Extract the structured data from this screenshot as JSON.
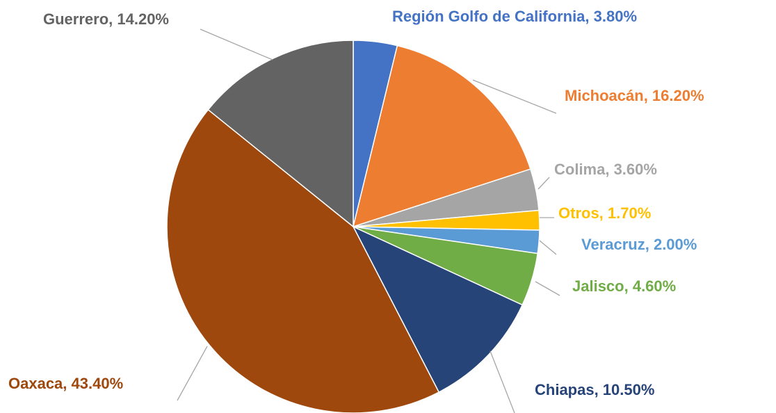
{
  "chart_data": {
    "type": "pie",
    "categories": [
      "Región Golfo de California",
      "Michoacán",
      "Colima",
      "Otros",
      "Veracruz",
      "Jalisco",
      "Chiapas",
      "Oaxaca",
      "Guerrero"
    ],
    "values": [
      3.8,
      16.2,
      3.6,
      1.7,
      2.0,
      4.6,
      10.5,
      43.4,
      14.2
    ],
    "value_labels": [
      "Región Golfo de California, 3.80%",
      "Michoacán, 16.20%",
      "Colima, 3.60%",
      "Otros, 1.70%",
      "Veracruz, 2.00%",
      "Jalisco, 4.60%",
      "Chiapas, 10.50%",
      "Oaxaca, 43.40%",
      "Guerrero, 14.20%"
    ],
    "colors": [
      "#4472c4",
      "#ed7d31",
      "#a5a5a5",
      "#ffc000",
      "#5b9bd5",
      "#70ad47",
      "#264478",
      "#9e480e",
      "#636363"
    ]
  }
}
